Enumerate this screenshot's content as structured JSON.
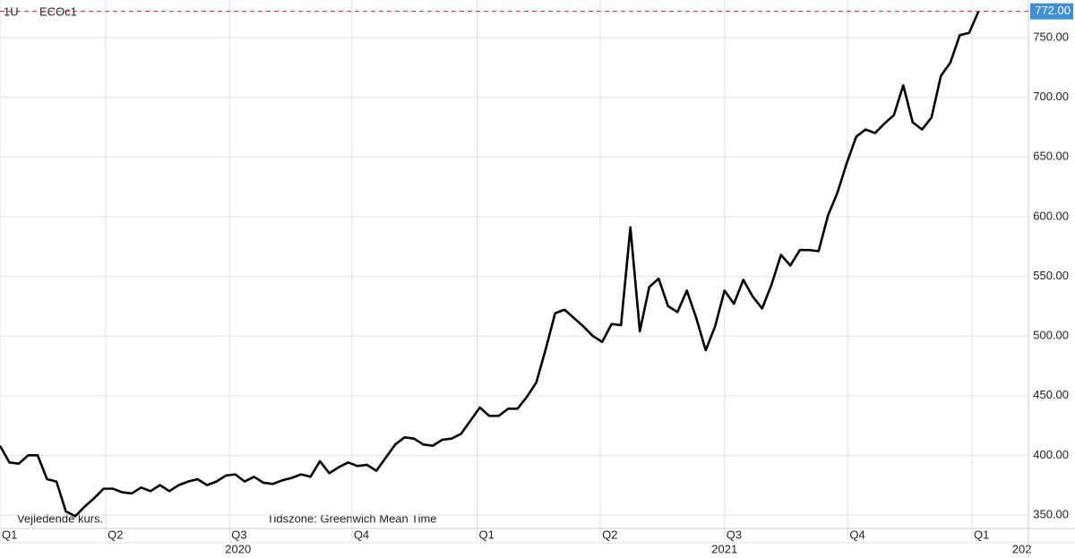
{
  "chart_data": {
    "type": "line",
    "header_labels": [
      "1U",
      "ECOc1"
    ],
    "notes": [
      "Vejledende kurs.",
      "Tidszone: Greenwich Mean Time"
    ],
    "color": "#000000",
    "values": [
      408,
      394,
      393,
      400,
      400,
      380,
      378,
      353,
      349,
      357,
      364,
      372,
      372,
      369,
      368,
      373,
      370,
      375,
      370,
      375,
      378,
      380,
      375,
      378,
      383,
      384,
      378,
      382,
      377,
      376,
      379,
      381,
      384,
      382,
      395,
      385,
      390,
      394,
      391,
      392,
      387,
      398,
      409,
      415,
      414,
      409,
      408,
      413,
      414,
      418,
      429,
      440,
      433,
      433,
      439,
      439,
      449,
      461,
      489,
      519,
      522,
      515,
      508,
      500,
      495,
      510,
      509,
      591,
      504,
      541,
      548,
      525,
      520,
      538,
      515,
      488,
      508,
      538,
      527,
      547,
      533,
      523,
      543,
      568,
      559,
      572,
      572,
      571,
      601,
      620,
      645,
      667,
      673,
      670,
      678,
      685,
      710,
      679,
      673,
      683,
      718,
      729,
      752,
      754,
      772
    ],
    "last_value": {
      "value": 772,
      "label": "772.00"
    },
    "xlim": [
      0,
      109.3
    ],
    "xticks": [
      {
        "value": 0,
        "label": "Q1"
      },
      {
        "value": 11.25,
        "label": "Q2"
      },
      {
        "value": 24.4,
        "label": "Q3"
      },
      {
        "value": 37.4,
        "label": "Q4"
      },
      {
        "value": 50.7,
        "label": "Q1"
      },
      {
        "value": 63.8,
        "label": "Q2"
      },
      {
        "value": 77,
        "label": "Q3"
      },
      {
        "value": 90.1,
        "label": "Q4"
      },
      {
        "value": 103.3,
        "label": "Q1"
      }
    ],
    "year_ticks": [
      {
        "value": 25.3,
        "label": "2020"
      },
      {
        "value": 77,
        "label": "2021"
      },
      {
        "value": 108.6,
        "label": "202"
      }
    ],
    "ylim": [
      340.2,
      781.5
    ],
    "yticks": [
      {
        "value": 350,
        "label": "350.00"
      },
      {
        "value": 400,
        "label": "400.00"
      },
      {
        "value": 450,
        "label": "450.00"
      },
      {
        "value": 500,
        "label": "500.00"
      },
      {
        "value": 550,
        "label": "550.00"
      },
      {
        "value": 600,
        "label": "600.00"
      },
      {
        "value": 650,
        "label": "650.00"
      },
      {
        "value": 700,
        "label": "700.00"
      },
      {
        "value": 750,
        "label": "750.00"
      }
    ],
    "grid": true
  }
}
